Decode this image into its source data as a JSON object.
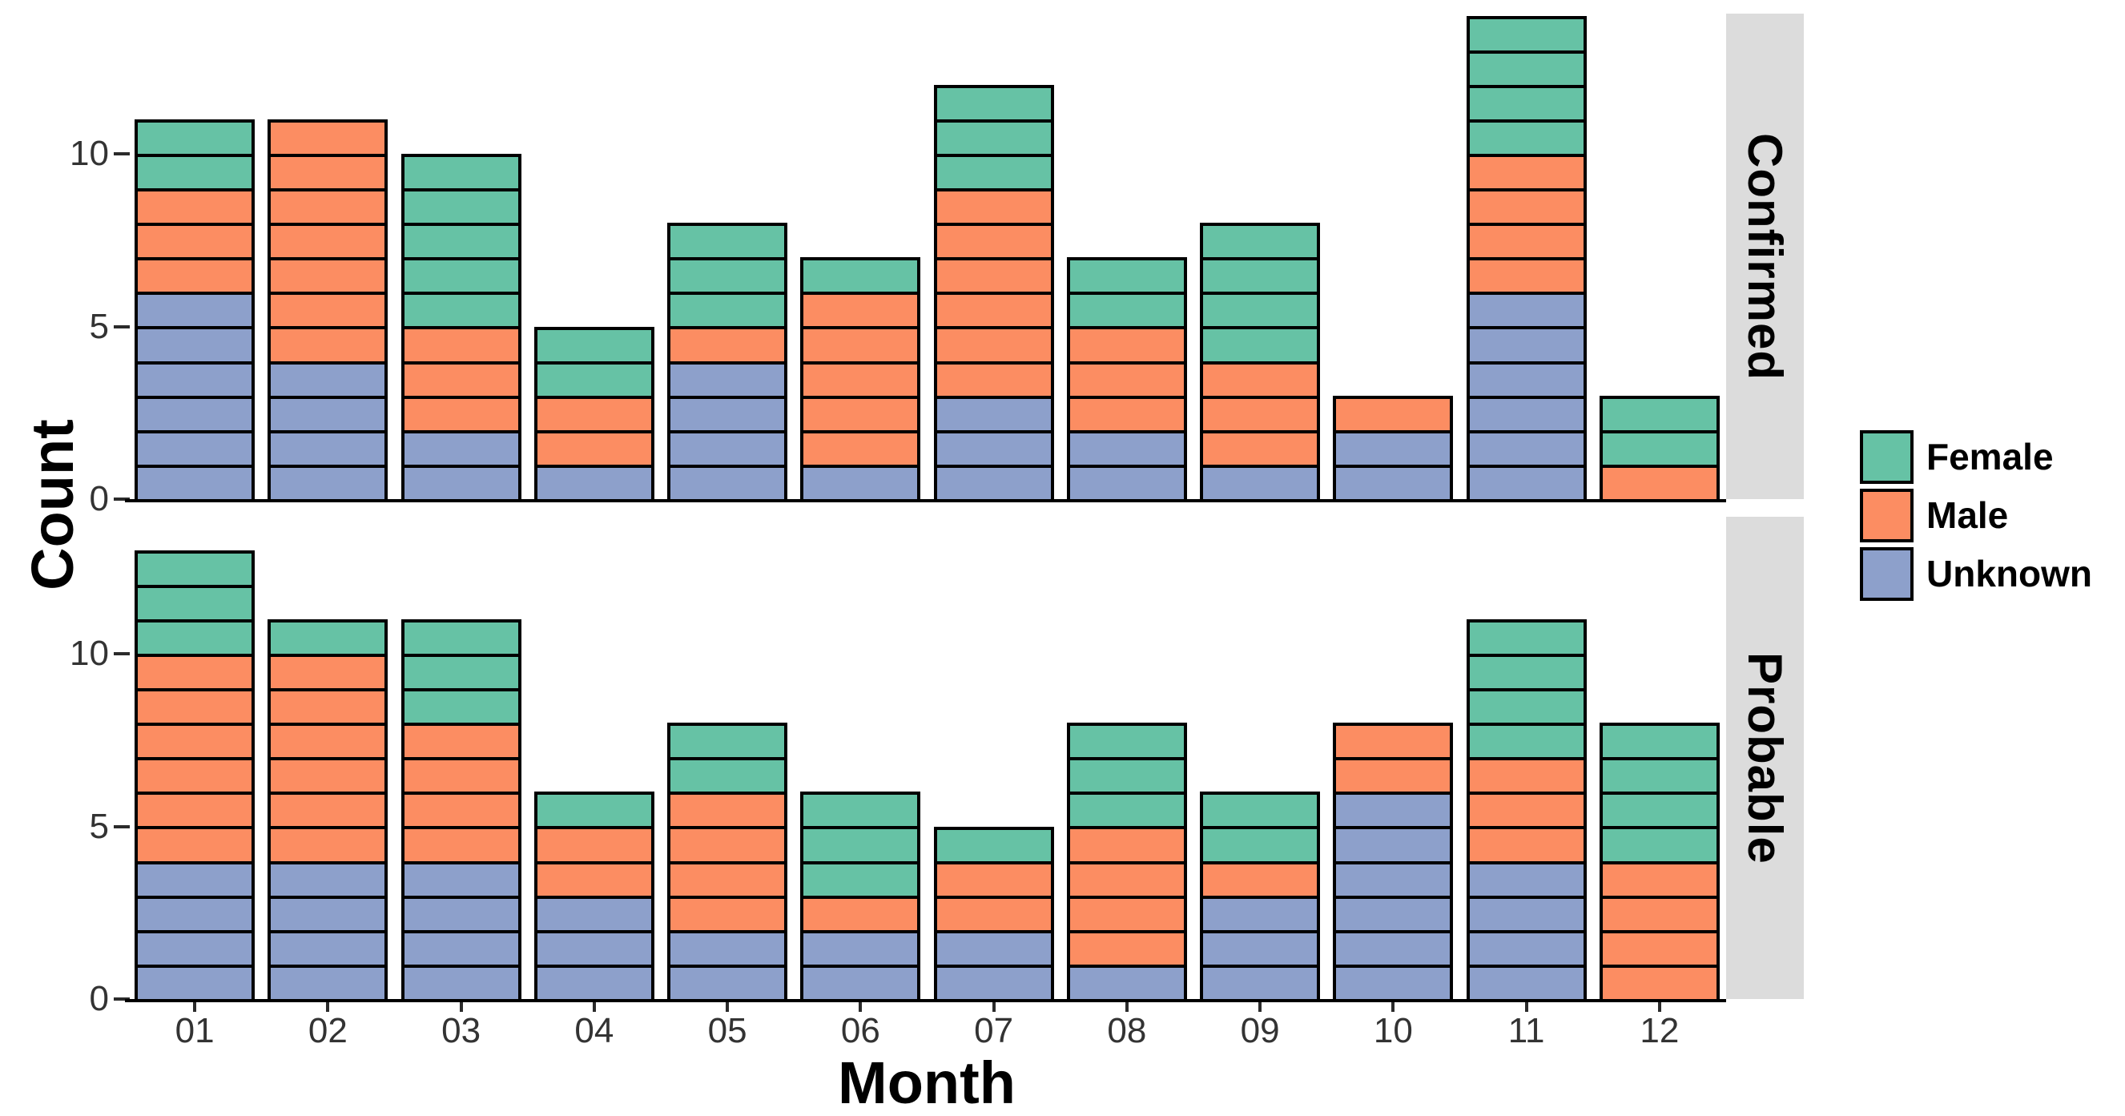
{
  "chart_data": {
    "type": "bar",
    "stacked": true,
    "unit_blocks": true,
    "grid": false,
    "xlabel": "Month",
    "ylabel": "Count",
    "categories": [
      "01",
      "02",
      "03",
      "04",
      "05",
      "06",
      "07",
      "08",
      "09",
      "10",
      "11",
      "12"
    ],
    "yticks": [
      0,
      5,
      10
    ],
    "ylim": [
      0,
      14
    ],
    "legend_position": "right",
    "legend": [
      {
        "label": "Female",
        "color": "#66C2A5"
      },
      {
        "label": "Male",
        "color": "#FC8D62"
      },
      {
        "label": "Unknown",
        "color": "#8DA0CB"
      }
    ],
    "facets": [
      {
        "label": "Confirmed",
        "series": [
          {
            "name": "Unknown",
            "values": [
              6,
              4,
              2,
              1,
              4,
              1,
              3,
              2,
              1,
              2,
              6,
              0
            ]
          },
          {
            "name": "Male",
            "values": [
              3,
              7,
              3,
              2,
              1,
              5,
              6,
              3,
              3,
              1,
              4,
              1
            ]
          },
          {
            "name": "Female",
            "values": [
              2,
              0,
              5,
              2,
              3,
              1,
              3,
              2,
              4,
              0,
              4,
              2
            ]
          }
        ],
        "totals": [
          11,
          11,
          10,
          5,
          8,
          7,
          12,
          7,
          8,
          3,
          14,
          3
        ]
      },
      {
        "label": "Probable",
        "series": [
          {
            "name": "Unknown",
            "values": [
              4,
              4,
              4,
              3,
              2,
              2,
              2,
              1,
              3,
              6,
              4,
              0
            ]
          },
          {
            "name": "Male",
            "values": [
              6,
              6,
              4,
              2,
              4,
              1,
              2,
              4,
              1,
              2,
              3,
              4
            ]
          },
          {
            "name": "Female",
            "values": [
              3,
              1,
              3,
              1,
              2,
              3,
              1,
              3,
              2,
              0,
              4,
              4
            ]
          }
        ],
        "totals": [
          13,
          11,
          11,
          6,
          8,
          6,
          5,
          8,
          6,
          8,
          11,
          8
        ]
      }
    ],
    "colors": {
      "female": "#66C2A5",
      "male": "#FC8D62",
      "unknown": "#8DA0CB",
      "bar_outline": "#000000",
      "axis_line": "#000000",
      "tick_text": "#333333",
      "strip_bg": "#DCDCDC",
      "strip_text": "#000000",
      "background": "#FFFFFF"
    }
  }
}
